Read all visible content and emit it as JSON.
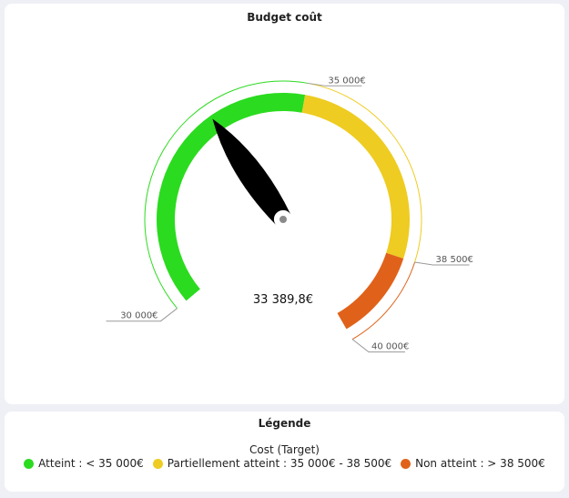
{
  "gauge_title": "Budget coût",
  "chart_data": {
    "type": "gauge",
    "title": "Budget coût",
    "min": 30000,
    "max": 40000,
    "value": 33389.8,
    "value_label": "33 389,8€",
    "bands": [
      {
        "name": "Atteint",
        "from": 30000,
        "to": 35000,
        "color": "#2bdb1f"
      },
      {
        "name": "Partiellement atteint",
        "from": 35000,
        "to": 38500,
        "color": "#eecc21"
      },
      {
        "name": "Non atteint",
        "from": 38500,
        "to": 40000,
        "color": "#e0621a"
      }
    ],
    "tick_labels": [
      {
        "value": 30000,
        "label": "30 000€",
        "color": "#2bdb1f"
      },
      {
        "value": 35000,
        "label": "35 000€",
        "color": "#eecc21"
      },
      {
        "value": 38500,
        "label": "38 500€",
        "color": "#e0621a"
      },
      {
        "value": 40000,
        "label": "40 000€",
        "color": "#e0621a"
      }
    ]
  },
  "legend": {
    "title": "Légende",
    "subtitle": "Cost (Target)",
    "items": [
      {
        "label": "Atteint : < 35 000€",
        "color": "#2bdb1f"
      },
      {
        "label": "Partiellement atteint : 35 000€ - 38 500€",
        "color": "#eecc21"
      },
      {
        "label": "Non atteint : > 38 500€",
        "color": "#e0621a"
      }
    ]
  }
}
